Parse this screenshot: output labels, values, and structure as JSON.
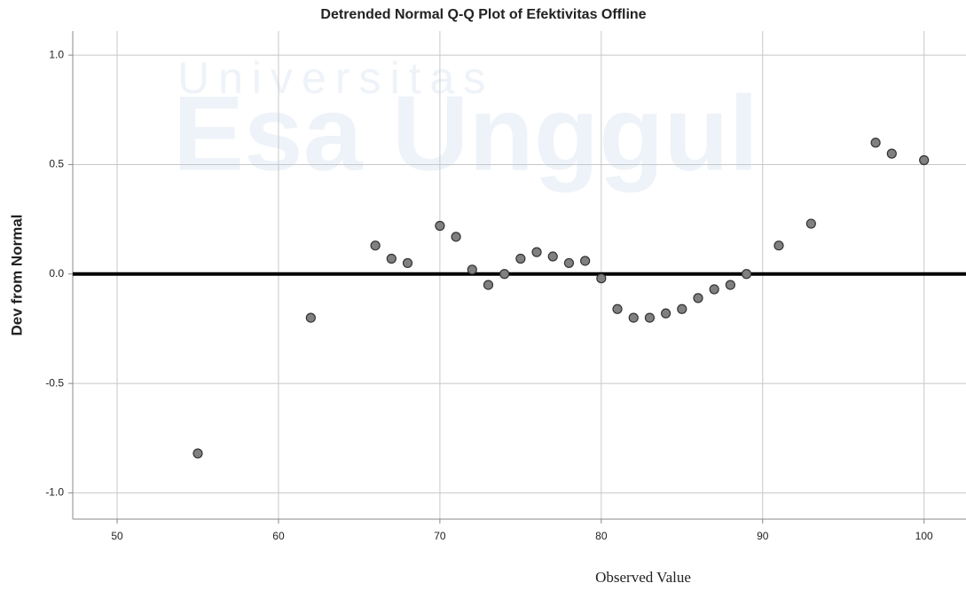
{
  "chart_data": {
    "type": "scatter",
    "title": "Detrended Normal Q-Q Plot of Efektivitas Offline",
    "xlabel": "Observed Value",
    "ylabel": "Dev from Normal",
    "watermark": [
      "Universitas",
      "Esa Unggul"
    ],
    "x": [
      55,
      62,
      66,
      67,
      68,
      70,
      71,
      72,
      73,
      74,
      75,
      76,
      77,
      78,
      79,
      80,
      81,
      82,
      83,
      84,
      85,
      86,
      87,
      88,
      89,
      91,
      93,
      97,
      98,
      100
    ],
    "values": [
      -0.82,
      -0.2,
      0.13,
      0.07,
      0.05,
      0.22,
      0.17,
      0.02,
      -0.05,
      0.0,
      0.07,
      0.1,
      0.08,
      0.05,
      0.06,
      -0.02,
      -0.16,
      -0.2,
      -0.2,
      -0.18,
      -0.16,
      -0.11,
      -0.07,
      -0.05,
      0.0,
      0.13,
      0.23,
      0.6,
      0.55,
      0.52
    ],
    "color": "#808080",
    "reference_line": 0,
    "xlim": [
      47.25,
      102.6
    ],
    "ylim": [
      -1.12,
      1.11
    ],
    "xticks": [
      50,
      60,
      70,
      80,
      90,
      100
    ],
    "yticks": [
      {
        "value": -1,
        "label": "-1.0"
      },
      {
        "value": -0.5,
        "label": "-0.5"
      },
      {
        "value": 0,
        "label": "0.0"
      },
      {
        "value": 0.5,
        "label": "0.5"
      },
      {
        "value": 1,
        "label": "1.0"
      }
    ],
    "grid": true
  }
}
